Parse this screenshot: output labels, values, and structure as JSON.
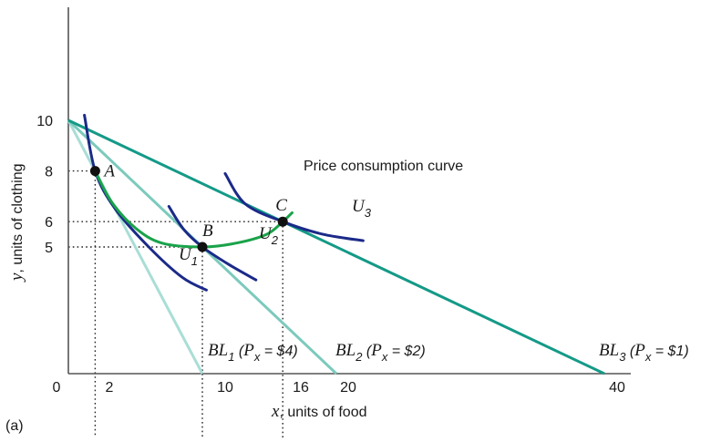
{
  "panel_label": "(a)",
  "chart_data": {
    "type": "line",
    "xlabel_var": "x",
    "xlabel_rest": ", units of food",
    "ylabel_var": "y",
    "ylabel_rest": ", units of clothing",
    "x_ticks": [
      0,
      2,
      10,
      16,
      20,
      40
    ],
    "y_ticks": [
      5,
      6,
      8,
      10
    ],
    "xlim": [
      0,
      42
    ],
    "ylim": [
      0,
      11.4
    ],
    "colors": {
      "bl1": "#a9ded6",
      "bl2": "#7ccabd",
      "bl3": "#149a87",
      "indifference": "#1b2a88",
      "pcc": "#1aa34a"
    },
    "budget_lines": [
      {
        "id": "bl1",
        "name": "BL",
        "sub": "1",
        "price": "$4",
        "points": [
          [
            0,
            10
          ],
          [
            10,
            0
          ]
        ]
      },
      {
        "id": "bl2",
        "name": "BL",
        "sub": "2",
        "price": "$2",
        "points": [
          [
            0,
            10
          ],
          [
            20,
            0
          ]
        ]
      },
      {
        "id": "bl3",
        "name": "BL",
        "sub": "3",
        "price": "$1",
        "points": [
          [
            0,
            10
          ],
          [
            40,
            0
          ]
        ]
      }
    ],
    "indifference_curves": [
      {
        "id": "u1",
        "name": "U",
        "sub": "1",
        "points": [
          [
            1.2,
            10.2
          ],
          [
            2,
            8
          ],
          [
            3.5,
            6.5
          ],
          [
            6,
            5
          ],
          [
            8.5,
            3.8
          ],
          [
            10.3,
            3.3
          ]
        ]
      },
      {
        "id": "u2",
        "name": "U",
        "sub": "2",
        "points": [
          [
            7.5,
            6.6
          ],
          [
            8.6,
            5.7
          ],
          [
            10,
            5
          ],
          [
            12,
            4.3
          ],
          [
            14,
            3.7
          ]
        ]
      },
      {
        "id": "u3",
        "name": "U",
        "sub": "3",
        "points": [
          [
            11.7,
            7.9
          ],
          [
            13.2,
            6.7
          ],
          [
            16,
            6
          ],
          [
            19,
            5.5
          ],
          [
            22,
            5.25
          ]
        ]
      }
    ],
    "price_consumption_curve": {
      "label": "Price consumption curve",
      "points": [
        [
          2,
          8
        ],
        [
          3.2,
          6.8
        ],
        [
          5,
          5.75
        ],
        [
          7,
          5.15
        ],
        [
          10,
          5
        ],
        [
          12.5,
          5.15
        ],
        [
          14.8,
          5.5
        ],
        [
          16,
          6
        ],
        [
          16.7,
          6.35
        ]
      ]
    },
    "optimal_points": [
      {
        "label": "A",
        "x": 2,
        "y": 8
      },
      {
        "label": "B",
        "x": 10,
        "y": 5
      },
      {
        "label": "C",
        "x": 16,
        "y": 6
      }
    ]
  }
}
